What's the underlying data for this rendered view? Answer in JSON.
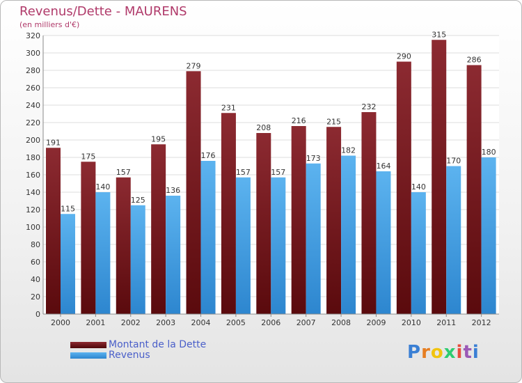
{
  "header": {
    "title": "Revenus/Dette - MAURENS",
    "subtitle": "(en milliers d'€)"
  },
  "chart_data": {
    "type": "bar",
    "categories": [
      "2000",
      "2001",
      "2002",
      "2003",
      "2004",
      "2005",
      "2006",
      "2007",
      "2008",
      "2009",
      "2010",
      "2011",
      "2012"
    ],
    "series": [
      {
        "name": "Montant de la Dette",
        "color": "#7a1a1e",
        "values": [
          191,
          175,
          157,
          195,
          279,
          231,
          208,
          216,
          215,
          232,
          290,
          315,
          286
        ]
      },
      {
        "name": "Revenus",
        "color": "#4aa3e6",
        "values": [
          115,
          140,
          125,
          136,
          176,
          157,
          157,
          173,
          182,
          164,
          140,
          170,
          180
        ]
      }
    ],
    "ylim": [
      0,
      320
    ],
    "ytick_step": 20,
    "grid": true,
    "legend": "bottom-left"
  },
  "logo": {
    "letters": [
      "P",
      "r",
      "o",
      "x",
      "i",
      "t",
      "i"
    ],
    "colors": [
      "#3a7fd4",
      "#e67e22",
      "#f1c40f",
      "#2ecc71",
      "#e74c3c",
      "#9b59b6",
      "#3a7fd4"
    ]
  }
}
